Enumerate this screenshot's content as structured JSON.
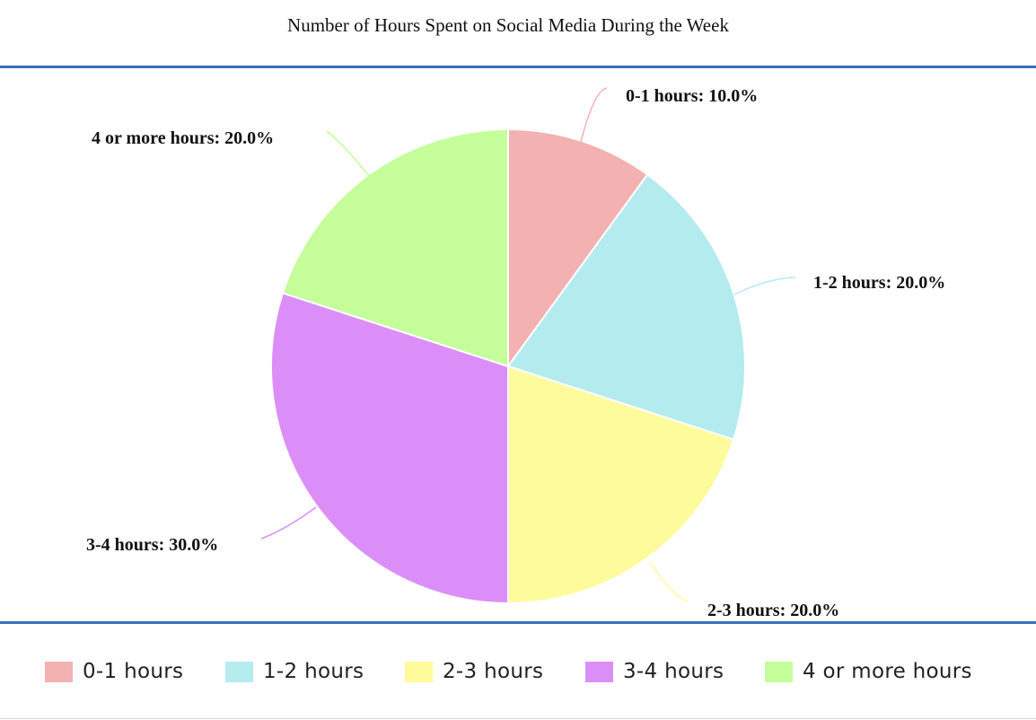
{
  "chart_data": {
    "type": "pie",
    "title": "Number of Hours Spent on Social Media During the Week",
    "categories": [
      "0-1 hours",
      "1-2 hours",
      "2-3 hours",
      "3-4 hours",
      "4 or more hours"
    ],
    "values": [
      10.0,
      20.0,
      20.0,
      30.0,
      20.0
    ],
    "data_labels": [
      "0-1 hours: 10.0%",
      "1-2 hours: 20.0%",
      "2-3 hours: 20.0%",
      "3-4 hours: 30.0%",
      "4 or more hours: 20.0%"
    ],
    "colors": [
      "#f3b1b1",
      "#b4ebee",
      "#fefb9c",
      "#db8ef8",
      "#c4fd9a"
    ],
    "legend_position": "bottom",
    "start_angle": "12 o'clock",
    "direction": "clockwise"
  }
}
